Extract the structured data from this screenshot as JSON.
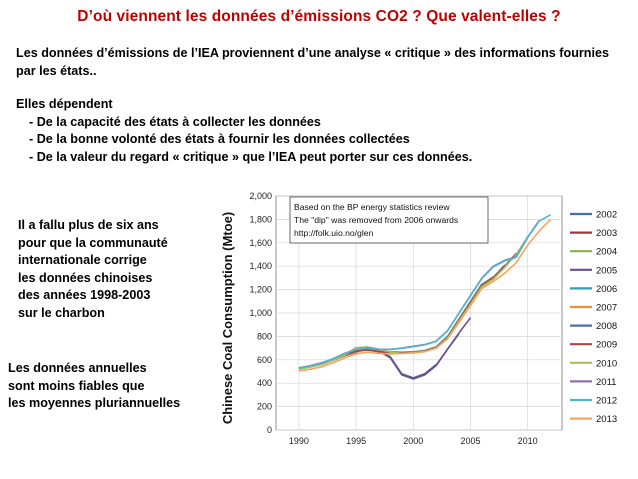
{
  "slide": {
    "title": "D’où viennent les données d’émissions CO2 ? Que valent-elles ?",
    "intro": "Les données d’émissions de l’IEA proviennent d’une analyse « critique » des informations fournies par les états..",
    "depends_heading": "Elles dépendent",
    "depends_items": [
      "De la capacité des états à collecter les données",
      "De la bonne volonté des états à fournir les données collectées",
      "De la valeur du regard « critique » que l’IEA peut porter sur ces données."
    ],
    "china_note": [
      "Il a fallu plus de six ans",
      "pour que la communauté",
      "internationale corrige",
      "les données chinoises",
      "des années 1998-2003",
      "sur le charbon"
    ],
    "annual_note": [
      "Les données annuelles",
      "sont moins fiables que",
      "les moyennes pluriannuelles"
    ]
  },
  "chart_data": {
    "type": "line",
    "ylabel": "Chinese Coal Consumption (Mtoe)",
    "xlim": [
      1988,
      2013
    ],
    "ylim": [
      0,
      2000
    ],
    "xticks": [
      1990,
      1995,
      2000,
      2005,
      2010
    ],
    "yticks": [
      0,
      200,
      400,
      600,
      800,
      1000,
      1200,
      1400,
      1600,
      1800,
      2000
    ],
    "grid": true,
    "legend_position": "right",
    "annotation": [
      "Based on the BP energy statistics review",
      "The \"dip\" was removed from 2006 onwards",
      "http://folk.uio.no/glen"
    ],
    "x": [
      1990,
      1991,
      1992,
      1993,
      1994,
      1995,
      1996,
      1997,
      1998,
      1999,
      2000,
      2001,
      2002,
      2003,
      2004,
      2005,
      2006,
      2007,
      2008,
      2009,
      2010,
      2011,
      2012
    ],
    "series": [
      {
        "name": "2002",
        "color": "#3f6fb5",
        "values": [
          530,
          545,
          565,
          600,
          640,
          670,
          700,
          680,
          625,
          480,
          445,
          480,
          560,
          null,
          null,
          null,
          null,
          null,
          null,
          null,
          null,
          null,
          null
        ]
      },
      {
        "name": "2003",
        "color": "#a03a3a",
        "values": [
          525,
          540,
          560,
          595,
          635,
          665,
          695,
          675,
          620,
          475,
          440,
          475,
          555,
          690,
          null,
          null,
          null,
          null,
          null,
          null,
          null,
          null,
          null
        ]
      },
      {
        "name": "2004",
        "color": "#88b04b",
        "values": [
          528,
          543,
          563,
          598,
          640,
          668,
          690,
          672,
          615,
          470,
          435,
          470,
          550,
          690,
          820,
          null,
          null,
          null,
          null,
          null,
          null,
          null,
          null
        ]
      },
      {
        "name": "2005",
        "color": "#6b4c9a",
        "values": [
          532,
          547,
          567,
          602,
          645,
          672,
          695,
          678,
          618,
          472,
          438,
          473,
          552,
          692,
          830,
          960,
          null,
          null,
          null,
          null,
          null,
          null,
          null
        ]
      },
      {
        "name": "2006",
        "color": "#2aa0b8",
        "values": [
          530,
          548,
          570,
          605,
          650,
          680,
          690,
          675,
          668,
          665,
          668,
          680,
          710,
          800,
          950,
          1100,
          1250,
          null,
          null,
          null,
          null,
          null,
          null
        ]
      },
      {
        "name": "2007",
        "color": "#f0902e",
        "values": [
          528,
          546,
          568,
          603,
          648,
          678,
          688,
          673,
          666,
          663,
          666,
          678,
          708,
          795,
          945,
          1095,
          1245,
          1310,
          null,
          null,
          null,
          null,
          null
        ]
      },
      {
        "name": "2008",
        "color": "#4b6fae",
        "values": [
          527,
          545,
          567,
          602,
          647,
          676,
          686,
          671,
          664,
          661,
          664,
          676,
          706,
          793,
          942,
          1090,
          1240,
          1305,
          1410,
          null,
          null,
          null,
          null
        ]
      },
      {
        "name": "2009",
        "color": "#a84545",
        "values": [
          526,
          544,
          566,
          600,
          645,
          675,
          684,
          668,
          660,
          658,
          660,
          672,
          702,
          790,
          938,
          1085,
          1235,
          1300,
          1400,
          1510,
          null,
          null,
          null
        ]
      },
      {
        "name": "2010",
        "color": "#a6c060",
        "values": [
          520,
          538,
          560,
          595,
          640,
          705,
          710,
          690,
          665,
          655,
          660,
          670,
          700,
          785,
          930,
          1075,
          1225,
          1290,
          1390,
          1500,
          1650,
          null,
          null
        ]
      },
      {
        "name": "2011",
        "color": "#8a74ae",
        "values": [
          530,
          550,
          575,
          610,
          655,
          690,
          705,
          690,
          690,
          700,
          715,
          730,
          760,
          850,
          1000,
          1150,
          1300,
          1400,
          1450,
          1480,
          1650,
          1790,
          null
        ]
      },
      {
        "name": "2012",
        "color": "#4fb5d0",
        "values": [
          528,
          548,
          572,
          608,
          652,
          688,
          702,
          688,
          688,
          698,
          712,
          728,
          758,
          848,
          998,
          1148,
          1295,
          1395,
          1445,
          1475,
          1645,
          1785,
          1840
        ]
      },
      {
        "name": "2013",
        "color": "#f5a55c",
        "values": [
          505,
          520,
          540,
          575,
          615,
          650,
          665,
          655,
          650,
          655,
          660,
          670,
          700,
          780,
          920,
          1065,
          1210,
          1270,
          1340,
          1430,
          1580,
          1700,
          1800
        ]
      }
    ]
  }
}
